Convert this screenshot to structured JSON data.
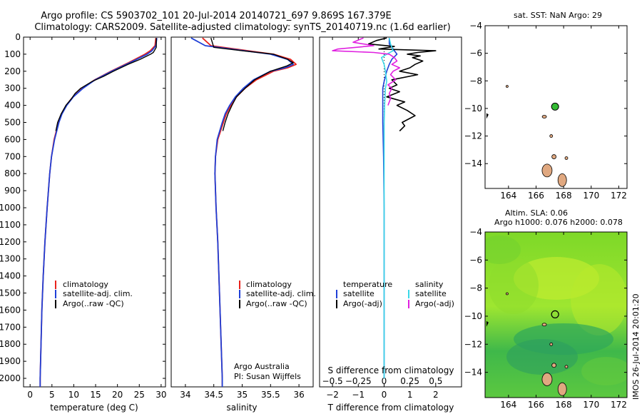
{
  "header": {
    "title_line1": "Argo profile: CS 5903702_101 20-Jul-2014 20140721_697 9.869S 167.379E",
    "title_line2": "Climatology: CARS2009. Satellite-adjusted climatology: synTS_20140719.nc (1.6d earlier)"
  },
  "credits": {
    "line1": "Argo Australia",
    "line2": "PI: Susan Wijffels",
    "imos": "IMOS 26-Jul-2014 20:01:20"
  },
  "depth_ticks": [
    0,
    100,
    200,
    300,
    400,
    500,
    600,
    700,
    800,
    900,
    1000,
    1100,
    1200,
    1300,
    1400,
    1500,
    1600,
    1700,
    1800,
    1900,
    2000
  ],
  "colors": {
    "climatology": "#e8221c",
    "satellite": "#1f3fd6",
    "argo": "#000000",
    "s_satellite": "#3ad8e8",
    "s_argo": "#e020e0",
    "land": "#e0a880",
    "marker": "#33bb33"
  },
  "chart_data": [
    {
      "type": "line",
      "id": "temperature",
      "xlabel": "temperature (deg C)",
      "xlim": [
        -1.5,
        31
      ],
      "ylim": [
        2050,
        0
      ],
      "x_ticks": [
        0,
        5,
        10,
        15,
        20,
        25,
        30
      ],
      "legend": [
        "climatology",
        "satellite-adj. clim.",
        "Argo(..raw -QC)"
      ],
      "series": [
        {
          "name": "climatology",
          "color": "#e8221c",
          "depth": [
            5,
            50,
            80,
            100,
            150,
            200,
            250,
            300,
            350,
            400,
            450,
            500,
            600,
            700,
            800,
            900,
            1000,
            1200,
            1400,
            1600,
            1800,
            2000,
            2050
          ],
          "values": [
            28.8,
            28.6,
            27.5,
            26.3,
            22.5,
            18.5,
            14.8,
            12.0,
            9.8,
            8.3,
            7.2,
            6.5,
            5.5,
            4.9,
            4.5,
            4.2,
            3.9,
            3.4,
            3.0,
            2.7,
            2.5,
            2.3,
            2.3
          ]
        },
        {
          "name": "satellite-adj. clim.",
          "color": "#1f3fd6",
          "depth": [
            5,
            50,
            80,
            100,
            150,
            200,
            250,
            300,
            350,
            400,
            450,
            500,
            600,
            700,
            800,
            900,
            1000,
            1200,
            1400,
            1600,
            1800,
            2000,
            2050
          ],
          "values": [
            29.0,
            28.8,
            27.9,
            26.8,
            22.8,
            18.7,
            14.9,
            12.1,
            9.9,
            8.4,
            7.3,
            6.6,
            5.6,
            4.9,
            4.5,
            4.2,
            3.9,
            3.4,
            3.0,
            2.7,
            2.5,
            2.3,
            2.3
          ]
        },
        {
          "name": "Argo(..raw -QC)",
          "color": "#000000",
          "depth": [
            5,
            60,
            90,
            100,
            130,
            160,
            200,
            230,
            260,
            300,
            330,
            360,
            400,
            450,
            500,
            550
          ],
          "values": [
            28.9,
            28.9,
            28.2,
            27.6,
            25.2,
            22.4,
            19.1,
            16.8,
            14.2,
            11.6,
            10.3,
            9.5,
            8.2,
            7.1,
            6.3,
            5.9
          ]
        }
      ]
    },
    {
      "type": "line",
      "id": "salinity",
      "xlabel": "salinity",
      "xlim": [
        33.75,
        36.25
      ],
      "ylim": [
        2050,
        0
      ],
      "x_ticks": [
        34,
        34.5,
        35,
        35.5,
        36
      ],
      "x_tick_labels": [
        "34",
        "34.5",
        "35",
        "35.5",
        "36"
      ],
      "legend": [
        "climatology",
        "satellite-adj. clim.",
        "Argo(..raw -QC)"
      ],
      "series": [
        {
          "name": "climatology",
          "color": "#e8221c",
          "depth": [
            5,
            50,
            100,
            130,
            160,
            180,
            200,
            250,
            300,
            350,
            400,
            450,
            500,
            600,
            700,
            800,
            1000,
            1200,
            1500,
            2000,
            2050
          ],
          "values": [
            34.3,
            34.45,
            35.55,
            35.85,
            35.95,
            35.8,
            35.55,
            35.25,
            35.05,
            34.9,
            34.8,
            34.72,
            34.67,
            34.57,
            34.53,
            34.52,
            34.54,
            34.57,
            34.6,
            34.65,
            34.65
          ]
        },
        {
          "name": "satellite-adj. clim.",
          "color": "#1f3fd6",
          "depth": [
            5,
            50,
            100,
            130,
            160,
            180,
            200,
            250,
            300,
            350,
            400,
            450,
            500,
            600,
            700,
            800,
            1000,
            1200,
            1500,
            2000,
            2050
          ],
          "values": [
            34.1,
            34.35,
            35.5,
            35.8,
            35.9,
            35.75,
            35.5,
            35.2,
            35.02,
            34.88,
            34.78,
            34.7,
            34.65,
            34.56,
            34.53,
            34.52,
            34.54,
            34.57,
            34.6,
            34.65,
            34.65
          ]
        },
        {
          "name": "Argo(..raw -QC)",
          "color": "#000000",
          "depth": [
            5,
            60,
            80,
            100,
            130,
            150,
            170,
            200,
            250,
            300,
            350,
            400,
            450,
            500,
            550
          ],
          "values": [
            34.45,
            34.5,
            35.0,
            35.55,
            35.8,
            35.9,
            35.78,
            35.5,
            35.22,
            35.05,
            34.9,
            34.82,
            34.75,
            34.7,
            34.66
          ]
        }
      ]
    },
    {
      "type": "line",
      "id": "differences",
      "xlabel": "T difference from climatology",
      "xlabel_top": "S difference from climatology",
      "xlim": [
        -2.5,
        3.0
      ],
      "ylim": [
        2050,
        0
      ],
      "x_ticks": [
        -2,
        -1,
        0,
        1,
        2
      ],
      "x_ticks_s": [
        -0.5,
        -0.25,
        0,
        0.25,
        0.5
      ],
      "x_tick_labels_s": [
        "−0.5",
        "−0.25",
        "0",
        "0.25",
        "0.5"
      ],
      "legend_t_title": "temperature",
      "legend_s_title": "salinity",
      "legend_t": [
        "satellite",
        "Argo(-adj)"
      ],
      "legend_s": [
        "satellite",
        "Argo(-adj)"
      ],
      "series": [
        {
          "name": "temperature satellite",
          "color": "#1f3fd6",
          "depth": [
            5,
            40,
            60,
            80,
            100,
            130,
            160,
            200,
            260,
            300,
            400,
            500,
            700,
            1000,
            1500,
            2000
          ],
          "values": [
            0.2,
            0.2,
            0.3,
            0.4,
            0.5,
            0.3,
            0.2,
            0.1,
            0.0,
            -0.05,
            -0.05,
            -0.05,
            -0.02,
            0.0,
            0.0,
            0.0
          ]
        },
        {
          "name": "temperature Argo(-adj)",
          "color": "#000000",
          "depth": [
            5,
            20,
            40,
            55,
            70,
            80,
            90,
            100,
            110,
            120,
            140,
            160,
            180,
            200,
            220,
            250,
            280,
            300,
            320,
            350,
            380,
            400,
            430,
            460,
            500,
            520,
            550
          ],
          "values": [
            0.1,
            -0.3,
            -0.6,
            0.4,
            -0.2,
            2.0,
            1.3,
            0.9,
            1.4,
            1.1,
            1.5,
            1.2,
            1.0,
            0.6,
            1.3,
            0.3,
            0.5,
            0.2,
            0.6,
            0.1,
            0.8,
            0.5,
            0.9,
            1.2,
            0.7,
            0.8,
            0.6
          ]
        },
        {
          "name": "salinity satellite",
          "color": "#3ad8e8",
          "depth": [
            5,
            40,
            60,
            80,
            100,
            120,
            140,
            160,
            200,
            260,
            300,
            400,
            500,
            700,
            1000,
            1500,
            2000
          ],
          "values": [
            0.2,
            0.25,
            0.3,
            0.35,
            0.1,
            -0.1,
            -0.05,
            0.0,
            0.05,
            0.1,
            0.05,
            0.02,
            0.0,
            0.0,
            0.0,
            0.0,
            0.0
          ]
        },
        {
          "name": "salinity Argo(-adj)",
          "color": "#e020e0",
          "depth": [
            5,
            30,
            50,
            70,
            80,
            90,
            100,
            120,
            140,
            160,
            180,
            200,
            220,
            250,
            280,
            300,
            330,
            360,
            400
          ],
          "values": [
            -0.8,
            -1.2,
            -0.4,
            -1.8,
            -2.0,
            -0.4,
            0.2,
            0.4,
            0.5,
            0.3,
            0.6,
            0.35,
            0.25,
            0.45,
            0.15,
            0.3,
            0.2,
            0.25,
            0.15
          ]
        }
      ]
    },
    {
      "type": "scatter",
      "id": "map_sst",
      "title": "sat. SST: NaN Argo: 29",
      "xlim": [
        162.3,
        172.6
      ],
      "ylim": [
        -15.8,
        -4
      ],
      "x_ticks": [
        164,
        166,
        168,
        170,
        172
      ],
      "y_ticks": [
        -4,
        -6,
        -8,
        -10,
        -12,
        -14
      ],
      "y_tick_labels": [
        "−4",
        "−6",
        "−8",
        "−10",
        "−12",
        "−14"
      ],
      "marker": {
        "lon": 167.38,
        "lat": -9.87
      }
    },
    {
      "type": "heatmap",
      "id": "map_sla",
      "title_line1": "Altim. SLA: 0.06",
      "title_line2": "Argo h1000: 0.076 h2000: 0.078",
      "xlim": [
        162.3,
        172.6
      ],
      "ylim": [
        -15.8,
        -4
      ],
      "x_ticks": [
        164,
        166,
        168,
        170,
        172
      ],
      "y_ticks": [
        -4,
        -6,
        -8,
        -10,
        -12,
        -14
      ],
      "y_tick_labels": [
        "−4",
        "−6",
        "−8",
        "−10",
        "−12",
        "−14"
      ],
      "marker": {
        "lon": 167.38,
        "lat": -9.87
      }
    }
  ]
}
